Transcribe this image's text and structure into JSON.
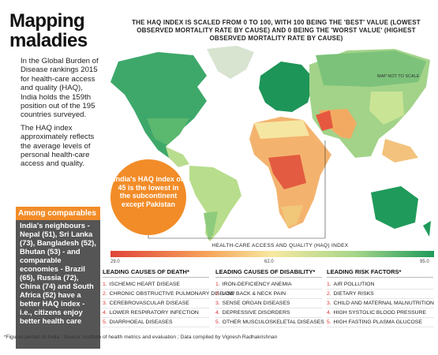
{
  "sidebar": {
    "title": "Mapping maladies",
    "paragraphs": [
      "In the Global Burden of Disease rankings 2015 for health-care access and quality (HAQ), India holds the 159th position out of the 195 countries surveyed.",
      "The HAQ index approximately reflects the average levels of personal health-care access and quality."
    ],
    "comparables": {
      "heading": "Among comparables",
      "text": "India's neighbours - Nepal (51), Sri Lanka (73), Bangladesh (52), Bhutan (53) - and comparable economies - Brazil (65), Russia (72), China (74) and South Africa (52) have a better HAQ index - i.e., citizens enjoy better health care"
    }
  },
  "map": {
    "header": "THE HAQ INDEX IS SCALED FROM 0 TO 100, WITH 100 BEING THE 'BEST' VALUE (LOWEST OBSERVED MORTALITY RATE BY CAUSE) AND 0 BEING THE 'WORST VALUE' (HIGHEST OBSERVED MORTALITY RATE BY CAUSE)",
    "note": "MAP NOT TO SCALE",
    "callout": "India's HAQ index of 45 is the lowest in the subcontinent except Pakistan",
    "legend": {
      "title": "HEALTH-CARE ACCESS AND QUALITY (HAQ) INDEX",
      "labels": [
        "29.0",
        "62.0",
        "95.0"
      ]
    }
  },
  "lists": [
    {
      "heading": "LEADING CAUSES OF DEATH*",
      "items": [
        {
          "n": "1.",
          "text": "ISCHEMIC HEART DISEASE"
        },
        {
          "n": "2.",
          "text": "CHRONIC OBSTRUCTIVE PULMONARY DISEASE"
        },
        {
          "n": "3.",
          "text": "CEREBROVASCULAR DISEASE"
        },
        {
          "n": "4.",
          "text": "LOWER RESPIRATORY INFECTION"
        },
        {
          "n": "5.",
          "text": "DIARRHOEAL DISEASES"
        }
      ]
    },
    {
      "heading": "LEADING CAUSES OF DISABILITY*",
      "items": [
        {
          "n": "1.",
          "text": "IRON-DEFICIENCY ANEMIA"
        },
        {
          "n": "2.",
          "text": "LOW BACK & NECK PAIN"
        },
        {
          "n": "3.",
          "text": "SENSE ORGAN DISEASES"
        },
        {
          "n": "4.",
          "text": "DEPRESSIVE DISORDERS"
        },
        {
          "n": "5.",
          "text": "OTHER MUSCULOSKELETAL DISEASES"
        }
      ]
    },
    {
      "heading": "LEADING RISK FACTORS*",
      "items": [
        {
          "n": "1.",
          "text": "AIR POLLUTION"
        },
        {
          "n": "2.",
          "text": "DIETARY RISKS"
        },
        {
          "n": "3.",
          "text": "CHILD AND MATERNAL MALNUTRITION"
        },
        {
          "n": "4.",
          "text": "HIGH SYSTOLIC BLOOD PRESSURE"
        },
        {
          "n": "5.",
          "text": "HIGH FASTING PLASMA GLUCOSE"
        }
      ]
    }
  ],
  "footer": "*Figures pertain to India ; Source: Institute of health metrics and evaluation ; Data compiled by Vignesh Radhakrishnan"
}
